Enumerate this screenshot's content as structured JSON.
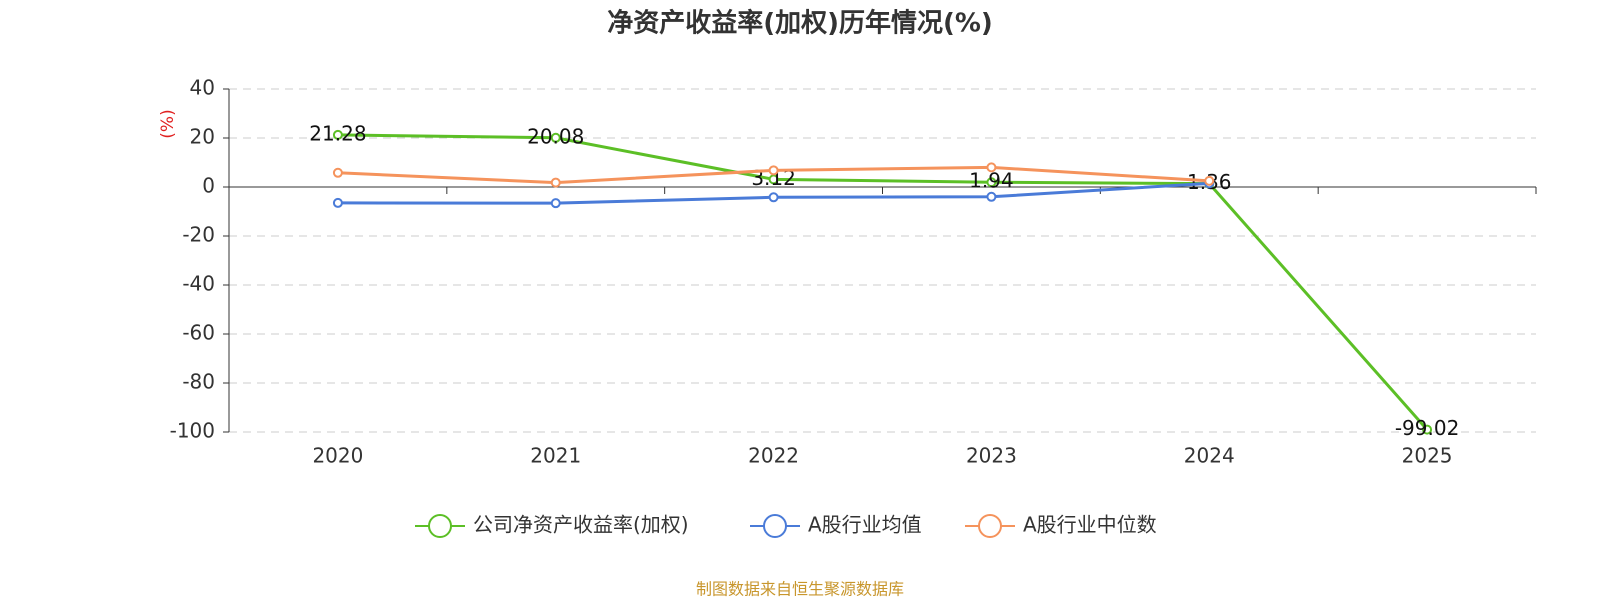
{
  "chart_data": {
    "type": "line",
    "title": "净资产收益率(加权)历年情况(%)",
    "y_label": "(%)",
    "source": "制图数据来自恒生聚源数据库",
    "categories": [
      "2020",
      "2021",
      "2022",
      "2023",
      "2024",
      "2025"
    ],
    "series": [
      {
        "name": "公司净资产收益率(加权)",
        "color": "#5cbf26",
        "values": [
          21.28,
          20.08,
          3.12,
          1.94,
          1.36,
          -99.02
        ],
        "labels": true
      },
      {
        "name": "A股行业均值",
        "color": "#4a7bd8",
        "values": [
          -6.5,
          -6.6,
          -4.2,
          -4.0,
          1.5,
          null
        ]
      },
      {
        "name": "A股行业中位数",
        "color": "#f5935c",
        "values": [
          5.8,
          1.8,
          6.8,
          8.0,
          2.5,
          null
        ]
      }
    ],
    "ylim": [
      -100,
      40
    ],
    "yticks": [
      -100,
      -80,
      -60,
      -40,
      -20,
      0,
      20,
      40
    ],
    "grid": true
  }
}
